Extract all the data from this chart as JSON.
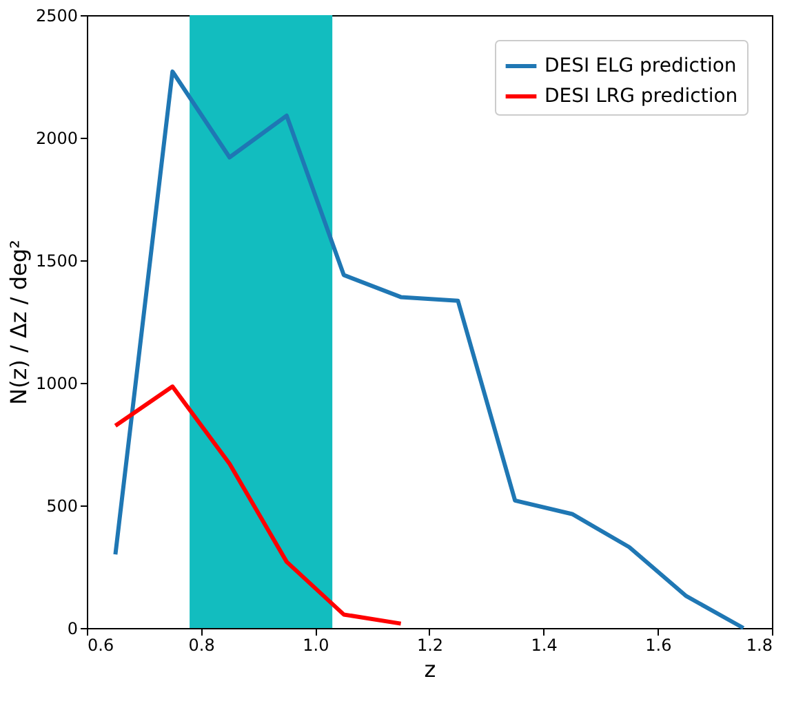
{
  "chart_data": {
    "type": "line",
    "xlabel": "z",
    "ylabel": "N(z) / Δz / deg²",
    "x": [
      0.65,
      0.75,
      0.85,
      0.95,
      1.05,
      1.15,
      1.25,
      1.35,
      1.45,
      1.55,
      1.65,
      1.75
    ],
    "series": [
      {
        "name": "DESI ELG prediction",
        "color": "#1f77b4",
        "values": [
          300,
          2270,
          1920,
          2090,
          1440,
          1350,
          1335,
          520,
          465,
          330,
          130,
          0
        ]
      },
      {
        "name": "DESI LRG prediction",
        "color": "#ff0000",
        "x": [
          0.65,
          0.75,
          0.85,
          0.95,
          1.05,
          1.15
        ],
        "values": [
          825,
          985,
          670,
          270,
          55,
          18
        ]
      }
    ],
    "bands": [
      {
        "axis": "x",
        "from": 0.78,
        "to": 1.03,
        "color": "#12bdbf"
      }
    ],
    "xlim": [
      0.6,
      1.8
    ],
    "xticks": [
      {
        "value": 0.6,
        "label": "0.6"
      },
      {
        "value": 0.8,
        "label": "0.8"
      },
      {
        "value": 1.0,
        "label": "1.0"
      },
      {
        "value": 1.2,
        "label": "1.2"
      },
      {
        "value": 1.4,
        "label": "1.4"
      },
      {
        "value": 1.6,
        "label": "1.6"
      },
      {
        "value": 1.8,
        "label": "1.8"
      }
    ],
    "ylim": [
      0,
      2500
    ],
    "yticks": [
      0,
      500,
      1000,
      1500,
      2000,
      2500
    ],
    "grid": false,
    "legend": "top right",
    "line_style": "solid",
    "marker": "none"
  }
}
